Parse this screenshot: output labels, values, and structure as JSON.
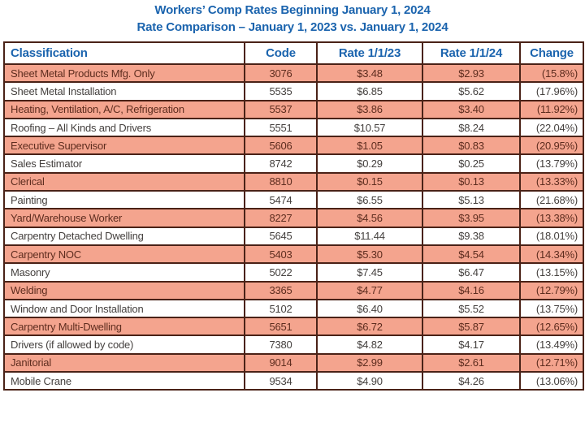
{
  "title": {
    "line1": "Workers’ Comp Rates Beginning January 1, 2024",
    "line2": "Rate Comparison – January 1, 2023 vs. January 1, 2024"
  },
  "chart_data": {
    "type": "table",
    "title": "Workers’ Comp Rates Beginning January 1, 2024",
    "subtitle": "Rate Comparison – January 1, 2023 vs. January 1, 2024",
    "columns": [
      "Classification",
      "Code",
      "Rate 1/1/23",
      "Rate 1/1/24",
      "Change"
    ],
    "rows": [
      {
        "classification": "Sheet Metal Products Mfg. Only",
        "code": "3076",
        "rate_2023": "$3.48",
        "rate_2024": "$2.93",
        "change": "(15.8%)"
      },
      {
        "classification": "Sheet Metal Installation",
        "code": "5535",
        "rate_2023": "$6.85",
        "rate_2024": "$5.62",
        "change": "(17.96%)"
      },
      {
        "classification": "Heating, Ventilation, A/C, Refrigeration",
        "code": "5537",
        "rate_2023": "$3.86",
        "rate_2024": "$3.40",
        "change": "(11.92%)"
      },
      {
        "classification": "Roofing – All Kinds and Drivers",
        "code": "5551",
        "rate_2023": "$10.57",
        "rate_2024": "$8.24",
        "change": "(22.04%)"
      },
      {
        "classification": "Executive Supervisor",
        "code": "5606",
        "rate_2023": "$1.05",
        "rate_2024": "$0.83",
        "change": "(20.95%)"
      },
      {
        "classification": "Sales Estimator",
        "code": "8742",
        "rate_2023": "$0.29",
        "rate_2024": "$0.25",
        "change": "(13.79%)"
      },
      {
        "classification": "Clerical",
        "code": "8810",
        "rate_2023": "$0.15",
        "rate_2024": "$0.13",
        "change": "(13.33%)"
      },
      {
        "classification": "Painting",
        "code": "5474",
        "rate_2023": "$6.55",
        "rate_2024": "$5.13",
        "change": "(21.68%)"
      },
      {
        "classification": "Yard/Warehouse Worker",
        "code": "8227",
        "rate_2023": "$4.56",
        "rate_2024": "$3.95",
        "change": "(13.38%)"
      },
      {
        "classification": "Carpentry Detached Dwelling",
        "code": "5645",
        "rate_2023": "$11.44",
        "rate_2024": "$9.38",
        "change": "(18.01%)"
      },
      {
        "classification": "Carpentry NOC",
        "code": "5403",
        "rate_2023": "$5.30",
        "rate_2024": "$4.54",
        "change": "(14.34%)"
      },
      {
        "classification": "Masonry",
        "code": "5022",
        "rate_2023": "$7.45",
        "rate_2024": "$6.47",
        "change": "(13.15%)"
      },
      {
        "classification": "Welding",
        "code": "3365",
        "rate_2023": "$4.77",
        "rate_2024": "$4.16",
        "change": "(12.79%)"
      },
      {
        "classification": "Window and Door Installation",
        "code": "5102",
        "rate_2023": "$6.40",
        "rate_2024": "$5.52",
        "change": "(13.75%)"
      },
      {
        "classification": "Carpentry Multi-Dwelling",
        "code": "5651",
        "rate_2023": "$6.72",
        "rate_2024": "$5.87",
        "change": "(12.65%)"
      },
      {
        "classification": "Drivers (if allowed by code)",
        "code": "7380",
        "rate_2023": "$4.82",
        "rate_2024": "$4.17",
        "change": "(13.49%)"
      },
      {
        "classification": "Janitorial",
        "code": "9014",
        "rate_2023": "$2.99",
        "rate_2024": "$2.61",
        "change": "(12.71%)"
      },
      {
        "classification": "Mobile Crane",
        "code": "9534",
        "rate_2023": "$4.90",
        "rate_2024": "$4.26",
        "change": "(13.06%)"
      }
    ],
    "layout": {
      "alternating_row_fill": "odd rows highlighted",
      "grid": true,
      "change_column_note": "all changes shown as decreases in parentheses"
    }
  },
  "colors": {
    "accent_blue": "#1b64ae",
    "row_highlight_salmon": "#f4a48e",
    "border_dark_maroon": "#4a2217",
    "text_dark": "#45413f",
    "text_highlight_row": "#5e2d1f",
    "background": "#ffffff"
  }
}
